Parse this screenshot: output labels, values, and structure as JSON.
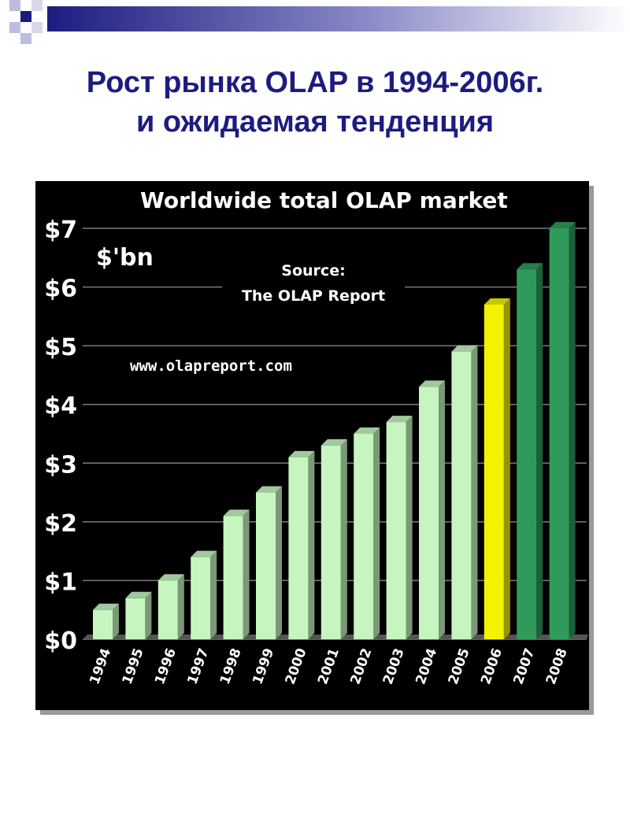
{
  "slide": {
    "title_line1": "Рост рынка OLAP в 1994-2006г.",
    "title_line2": "и ожидаемая тенденция"
  },
  "colors": {
    "title": "#1c1c80",
    "chart_bg": "#000000",
    "grid": "#7a7a7a",
    "text": "#ffffff",
    "bar_actual": "#c6f5c0",
    "bar_current": "#f5f200",
    "bar_forecast": "#2f9a5a"
  },
  "chart_data": {
    "type": "bar",
    "title": "Worldwide total OLAP market",
    "unit_label": "$'bn",
    "source_line1": "Source:",
    "source_line2": "The OLAP Report",
    "url": "www.olapreport.com",
    "categories": [
      "1994",
      "1995",
      "1996",
      "1997",
      "1998",
      "1999",
      "2000",
      "2001",
      "2002",
      "2003",
      "2004",
      "2005",
      "2006",
      "2007",
      "2008"
    ],
    "values": [
      0.5,
      0.7,
      1.0,
      1.4,
      2.1,
      2.5,
      3.1,
      3.3,
      3.5,
      3.7,
      4.3,
      4.9,
      5.7,
      6.3,
      7.0
    ],
    "bar_kind": [
      "actual",
      "actual",
      "actual",
      "actual",
      "actual",
      "actual",
      "actual",
      "actual",
      "actual",
      "actual",
      "actual",
      "actual",
      "current",
      "forecast",
      "forecast"
    ],
    "yticks": [
      "$0",
      "$1",
      "$2",
      "$3",
      "$4",
      "$5",
      "$6",
      "$7"
    ],
    "ylim": [
      0,
      7
    ],
    "grid": true,
    "legend": "none"
  }
}
